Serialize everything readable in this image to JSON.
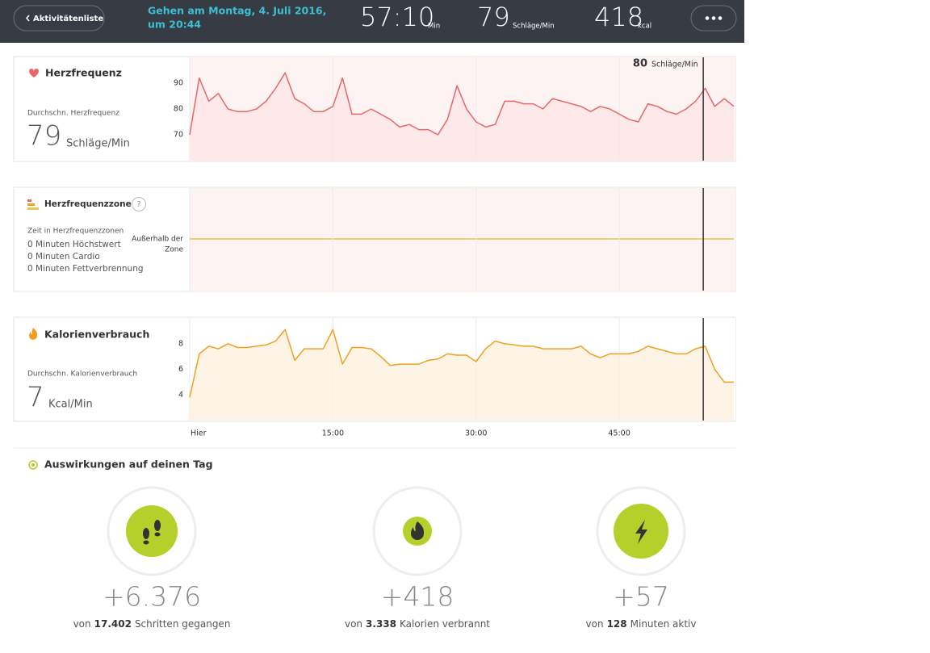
{
  "header": {
    "back": "Aktivitätenliste",
    "title_line1": "Gehen am Montag, 4. Juli 2016,",
    "title_line2": "um 20:44",
    "stats": [
      {
        "value": "57:10",
        "unit": "Min"
      },
      {
        "value": "79",
        "unit": "Schläge/Min"
      },
      {
        "value": "418",
        "unit": "kcal"
      }
    ]
  },
  "time_axis": {
    "xlim": [
      0,
      57.17
    ],
    "xticks": [
      {
        "value": 0,
        "label": "Hier"
      },
      {
        "value": 15,
        "label": "15:00"
      },
      {
        "value": 30,
        "label": "30:00"
      },
      {
        "value": 45,
        "label": "45:00"
      }
    ],
    "x": [
      0,
      1,
      2,
      3,
      4,
      5,
      6,
      7,
      8,
      9,
      10,
      11,
      12,
      13,
      14,
      15,
      16,
      17,
      18,
      19,
      20,
      21,
      22,
      23,
      24,
      25,
      26,
      27,
      28,
      29,
      30,
      31,
      32,
      33,
      34,
      35,
      36,
      37,
      38,
      39,
      40,
      41,
      42,
      43,
      44,
      45,
      46,
      47,
      48,
      49,
      50,
      51,
      52,
      53,
      54,
      55,
      56,
      57
    ],
    "cursor": 53.8
  },
  "heart": {
    "title": "Herzfrequenz",
    "avg_label": "Durchschn. Herzfrequenz",
    "avg_value": 79,
    "avg_unit": "Schläge/Min",
    "cursor_value": 80,
    "cursor_unit": "Schläge/Min",
    "chart": {
      "type": "line",
      "color": "#e8676b",
      "ylim": [
        60,
        100
      ],
      "yticks": [
        70,
        80,
        90
      ],
      "values": [
        70,
        92,
        83,
        86,
        80,
        79,
        79,
        80,
        83,
        88,
        94,
        84,
        82,
        79,
        79,
        81,
        92,
        78,
        78,
        80,
        78,
        76,
        73,
        74,
        72,
        72,
        70,
        76,
        89,
        80,
        75,
        73,
        74,
        83,
        83,
        82,
        82,
        80,
        84,
        83,
        82,
        81,
        79,
        81,
        80,
        78,
        76,
        75,
        82,
        81,
        79,
        78,
        80,
        83,
        88,
        81,
        84,
        81
      ]
    }
  },
  "zones": {
    "title": "Herzfrequenzzonen",
    "help": "?",
    "subtitle": "Zeit in Herzfrequenzzonen",
    "rows": [
      "0 Minuten Höchstwert",
      "0 Minuten Cardio",
      "0 Minuten Fettverbrennung"
    ],
    "zone_label_1": "Außerhalb der",
    "zone_label_2": "Zone"
  },
  "calories": {
    "title": "Kalorienverbrauch",
    "avg_label": "Durchschn. Kalorienverbrauch",
    "avg_value": 7,
    "avg_unit": "Kcal/Min",
    "chart": {
      "type": "line",
      "color": "#f0a020",
      "ylim": [
        2,
        10
      ],
      "yticks": [
        4,
        6,
        8
      ],
      "values": [
        3.8,
        7.2,
        7.8,
        7.6,
        8,
        7.7,
        7.7,
        7.8,
        7.9,
        8.2,
        9.1,
        6.7,
        7.6,
        7.6,
        7.6,
        9.1,
        6.4,
        7.7,
        7.7,
        7.6,
        7.0,
        6.3,
        6.4,
        6.4,
        6.4,
        6.7,
        6.8,
        7.2,
        7.1,
        7.1,
        6.6,
        7.6,
        8.2,
        8.0,
        7.9,
        7.8,
        7.8,
        7.6,
        7.6,
        7.6,
        7.6,
        7.8,
        7.2,
        6.9,
        7.2,
        7.2,
        7.2,
        7.4,
        7.8,
        7.6,
        7.4,
        7.2,
        7.2,
        7.6,
        7.8,
        6.0,
        5.0,
        5.0
      ]
    }
  },
  "impact": {
    "title": "Auswirkungen auf deinen Tag",
    "items": [
      {
        "delta": "+6.376",
        "prefix": "von",
        "total": "17.402",
        "suffix": "Schritten gegangen"
      },
      {
        "delta": "+418",
        "prefix": "von",
        "total": "3.338",
        "suffix": "Kalorien verbrannt"
      },
      {
        "delta": "+57",
        "prefix": "von",
        "total": "128",
        "suffix": "Minuten aktiv"
      }
    ]
  }
}
